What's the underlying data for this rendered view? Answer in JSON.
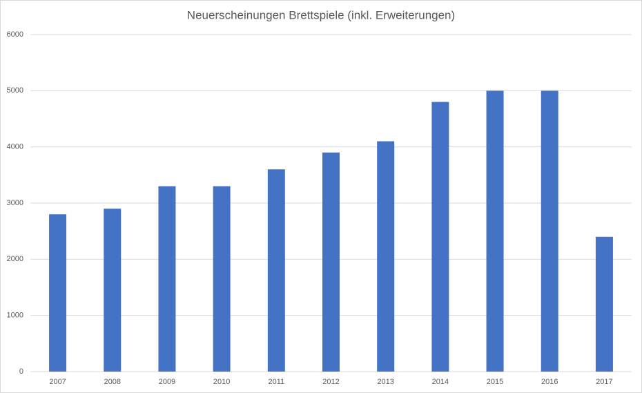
{
  "chart_data": {
    "type": "bar",
    "title": "Neuerscheinungen Brettspiele (inkl. Erweiterungen)",
    "categories": [
      "2007",
      "2008",
      "2009",
      "2010",
      "2011",
      "2012",
      "2013",
      "2014",
      "2015",
      "2016",
      "2017"
    ],
    "values": [
      2800,
      2900,
      3300,
      3300,
      3600,
      3900,
      4100,
      4800,
      5000,
      5000,
      2400
    ],
    "color": "#4472c4",
    "ylim": [
      0,
      6000
    ],
    "yticks": [
      0,
      1000,
      2000,
      3000,
      4000,
      5000,
      6000
    ],
    "grid": true
  }
}
